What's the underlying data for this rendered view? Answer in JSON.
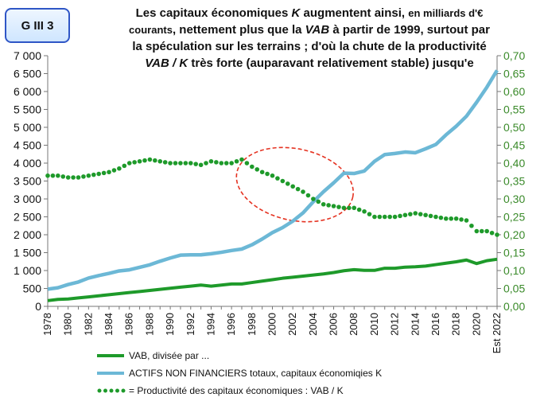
{
  "badge": "G III 3",
  "title_parts": [
    {
      "text": "Les capitaux économiques "
    },
    {
      "text": "K",
      "italic": true
    },
    {
      "text": " augmentent ainsi, "
    },
    {
      "text": "en milliards d'€",
      "small": true
    },
    {
      "br": true
    },
    {
      "text": "courants",
      "small": true
    },
    {
      "text": ", nettement plus que la "
    },
    {
      "text": "VAB",
      "italic": true
    },
    {
      "text": " à partir de 1999, surtout par"
    },
    {
      "br": true
    },
    {
      "text": "la spéculation sur les terrains ; d'où la chute de la productivité"
    },
    {
      "br": true
    },
    {
      "text": "VAB / K",
      "italic": true
    },
    {
      "text": " très forte (auparavant relativement stable) jusqu'e"
    }
  ],
  "chart_data": {
    "type": "line",
    "x": [
      1978,
      1979,
      1980,
      1981,
      1982,
      1983,
      1984,
      1985,
      1986,
      1987,
      1988,
      1989,
      1990,
      1991,
      1992,
      1993,
      1994,
      1995,
      1996,
      1997,
      1998,
      1999,
      2000,
      2001,
      2002,
      2003,
      2004,
      2005,
      2006,
      2007,
      2008,
      2009,
      2010,
      2011,
      2012,
      2013,
      2014,
      2015,
      2016,
      2017,
      2018,
      2019,
      2020,
      2021,
      2022
    ],
    "x_tick_labels": [
      "1978",
      "1980",
      "1982",
      "1984",
      "1986",
      "1988",
      "1990",
      "1992",
      "1994",
      "1996",
      "1998",
      "2000",
      "2002",
      "2004",
      "2006",
      "2008",
      "2010",
      "2012",
      "2014",
      "2016",
      "2018",
      "2020",
      "Est 2022"
    ],
    "y_left": {
      "min": 0,
      "max": 7000,
      "ticks": [
        "0",
        "500",
        "1 000",
        "1 500",
        "2 000",
        "2 500",
        "3 000",
        "3 500",
        "4 000",
        "4 500",
        "5 000",
        "5 500",
        "6 000",
        "6 500",
        "7 000"
      ]
    },
    "y_right": {
      "min": 0,
      "max": 0.7,
      "ticks": [
        "0,00",
        "0,05",
        "0,10",
        "0,15",
        "0,20",
        "0,25",
        "0,30",
        "0,35",
        "0,40",
        "0,45",
        "0,50",
        "0,55",
        "0,60",
        "0,65",
        "0,70"
      ]
    },
    "series": [
      {
        "name": "VAB, divisée par ...",
        "axis": "left",
        "style": "solid",
        "color": "#1e9a2a",
        "values": [
          160,
          195,
          205,
          235,
          265,
          295,
          325,
          355,
          385,
          415,
          445,
          475,
          505,
          535,
          565,
          595,
          565,
          595,
          625,
          625,
          665,
          705,
          745,
          785,
          815,
          845,
          875,
          905,
          945,
          995,
          1025,
          1005,
          1005,
          1065,
          1065,
          1095,
          1105,
          1125,
          1165,
          1205,
          1245,
          1295,
          1195,
          1275,
          1315
        ]
      },
      {
        "name": "ACTIFS NON FINANCIERS totaux, capitaux économiqies K",
        "axis": "left",
        "style": "solid",
        "color": "#6cb8d6",
        "values": [
          480,
          520,
          610,
          680,
          790,
          860,
          920,
          990,
          1020,
          1090,
          1160,
          1260,
          1350,
          1430,
          1440,
          1440,
          1470,
          1510,
          1560,
          1600,
          1720,
          1880,
          2060,
          2200,
          2380,
          2610,
          2920,
          3200,
          3450,
          3720,
          3710,
          3780,
          4050,
          4240,
          4270,
          4310,
          4290,
          4400,
          4520,
          4790,
          5030,
          5310,
          5700,
          6120,
          6590
        ]
      },
      {
        "name": "= Productivité des capitaux économiques : VAB / K",
        "axis": "right",
        "style": "dotted",
        "color": "#1e9a2a",
        "values": [
          0.365,
          0.365,
          0.36,
          0.36,
          0.365,
          0.37,
          0.375,
          0.385,
          0.4,
          0.405,
          0.41,
          0.405,
          0.4,
          0.4,
          0.4,
          0.395,
          0.405,
          0.4,
          0.4,
          0.41,
          0.39,
          0.375,
          0.365,
          0.35,
          0.335,
          0.32,
          0.3,
          0.285,
          0.28,
          0.275,
          0.275,
          0.265,
          0.25,
          0.25,
          0.25,
          0.255,
          0.26,
          0.255,
          0.25,
          0.245,
          0.245,
          0.24,
          0.21,
          0.21,
          0.2
        ]
      }
    ],
    "annotation": {
      "shape": "ellipse",
      "color": "#e53322",
      "style": "dashed",
      "x_center": 2002.2,
      "y_center": 3400,
      "x_half_width": 5.8,
      "y_half_height": 1000
    },
    "grid": false,
    "legend_position": "bottom-left"
  }
}
